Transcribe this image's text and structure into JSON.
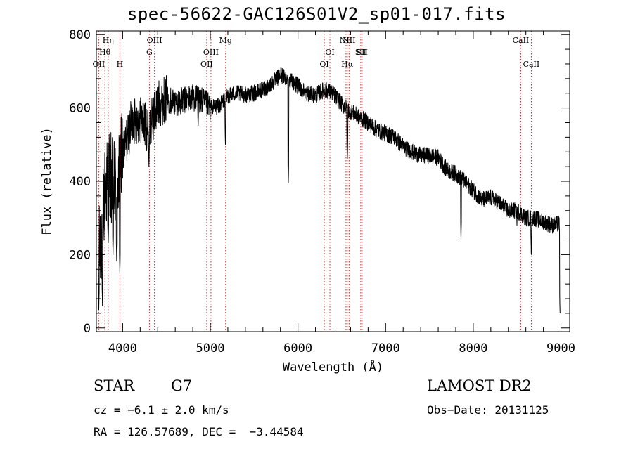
{
  "chart_data": {
    "type": "line",
    "title": "spec-56622-GAC126S01V2_sp01-017.fits",
    "xlabel": "Wavelength (Å)",
    "ylabel": "Flux (relative)",
    "xlim": [
      3700,
      9100
    ],
    "ylim": [
      -10,
      810
    ],
    "x_ticks": [
      4000,
      5000,
      6000,
      7000,
      8000,
      9000
    ],
    "y_ticks": [
      0,
      200,
      400,
      600,
      800
    ],
    "grid": false,
    "line_color": "#000000",
    "marker_color": "#b03030",
    "continuum": {
      "x": [
        3720,
        3760,
        3800,
        3850,
        3900,
        3950,
        4000,
        4100,
        4200,
        4300,
        4400,
        4500,
        4600,
        4700,
        4800,
        4900,
        5000,
        5100,
        5200,
        5300,
        5400,
        5500,
        5600,
        5700,
        5800,
        5900,
        6000,
        6100,
        6200,
        6300,
        6400,
        6500,
        6600,
        6700,
        6800,
        6900,
        7000,
        7100,
        7200,
        7300,
        7400,
        7500,
        7600,
        7700,
        7800,
        7900,
        8000,
        8100,
        8200,
        8300,
        8400,
        8500,
        8600,
        8700,
        8800,
        8900,
        8990
      ],
      "y": [
        180,
        260,
        380,
        420,
        380,
        410,
        470,
        560,
        570,
        540,
        610,
        625,
        615,
        620,
        630,
        620,
        600,
        605,
        635,
        640,
        635,
        640,
        650,
        665,
        690,
        680,
        660,
        640,
        635,
        650,
        640,
        610,
        590,
        575,
        560,
        540,
        530,
        520,
        495,
        480,
        470,
        470,
        465,
        430,
        420,
        400,
        375,
        350,
        355,
        340,
        320,
        320,
        300,
        300,
        290,
        280,
        285
      ]
    },
    "absorption_features": [
      {
        "x": 3728,
        "y": 50
      },
      {
        "x": 3770,
        "y": 60
      },
      {
        "x": 3835,
        "y": 220
      },
      {
        "x": 3890,
        "y": 200
      },
      {
        "x": 3933,
        "y": 170
      },
      {
        "x": 3968,
        "y": 150
      },
      {
        "x": 4300,
        "y": 440
      },
      {
        "x": 4861,
        "y": 540
      },
      {
        "x": 5172,
        "y": 500
      },
      {
        "x": 5890,
        "y": 395
      },
      {
        "x": 6563,
        "y": 450
      },
      {
        "x": 7860,
        "y": 240
      },
      {
        "x": 8498,
        "y": 280
      },
      {
        "x": 8662,
        "y": 200
      },
      {
        "x": 8990,
        "y": 40
      }
    ],
    "line_markers": [
      {
        "label": "OII",
        "x": 3727,
        "row": 3
      },
      {
        "label": "Hθ",
        "x": 3798,
        "row": 2
      },
      {
        "label": "Hη",
        "x": 3835,
        "row": 1
      },
      {
        "label": "H",
        "x": 3968,
        "row": 3
      },
      {
        "label": "G",
        "x": 4305,
        "row": 2
      },
      {
        "label": "OIII",
        "x": 4363,
        "row": 1
      },
      {
        "label": "OII",
        "x": 4959,
        "row": 3
      },
      {
        "label": "OIII",
        "x": 5007,
        "row": 2
      },
      {
        "label": "Mg",
        "x": 5175,
        "row": 1
      },
      {
        "label": "OI",
        "x": 6300,
        "row": 3
      },
      {
        "label": "OI",
        "x": 6364,
        "row": 2
      },
      {
        "label": "NII",
        "x": 6548,
        "row": 1
      },
      {
        "label": "Hα",
        "x": 6563,
        "row": 3
      },
      {
        "label": "NII",
        "x": 6583,
        "row": 1
      },
      {
        "label": "SII",
        "x": 6716,
        "row": 2
      },
      {
        "label": "SII",
        "x": 6731,
        "row": 2
      },
      {
        "label": "CaII",
        "x": 8542,
        "row": 1
      },
      {
        "label": "CaII",
        "x": 8662,
        "row": 3
      }
    ]
  },
  "info": {
    "object_class": "STAR",
    "subclass": "G7",
    "survey": "LAMOST DR2",
    "cz": "cz = −6.1 ± 2.0 km/s",
    "obs_date": "Obs−Date: 20131125",
    "coords": "RA = 126.57689, DEC =  −3.44584"
  }
}
